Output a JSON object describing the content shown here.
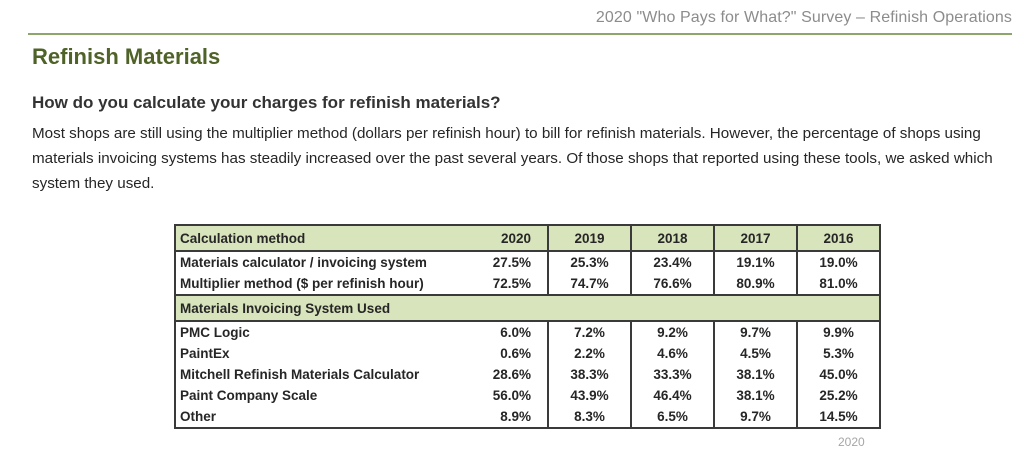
{
  "header": {
    "running_title": "2020 \"Who Pays for What?\" Survey – Refinish Operations",
    "section_title": "Refinish Materials",
    "question": "How do you calculate your charges for refinish materials?",
    "body": "Most shops are still using the multiplier method (dollars per refinish hour) to bill for refinish materials. However, the percentage of shops using materials invoicing systems has steadily increased over the past several years.  Of those shops that reported using these tools, we asked which system they used."
  },
  "table": {
    "header_label": "Calculation method",
    "years": [
      "2020",
      "2019",
      "2018",
      "2017",
      "2016"
    ],
    "calc_rows": [
      {
        "label": "Materials calculator / invoicing system",
        "values": [
          "27.5%",
          "25.3%",
          "23.4%",
          "19.1%",
          "19.0%"
        ]
      },
      {
        "label": "Multiplier method ($ per refinish hour)",
        "values": [
          "72.5%",
          "74.7%",
          "76.6%",
          "80.9%",
          "81.0%"
        ]
      }
    ],
    "subheader_label": "Materials Invoicing System Used",
    "system_rows": [
      {
        "label": "PMC Logic",
        "values": [
          "6.0%",
          "7.2%",
          "9.2%",
          "9.7%",
          "9.9%"
        ]
      },
      {
        "label": "PaintEx",
        "values": [
          "0.6%",
          "2.2%",
          "4.6%",
          "4.5%",
          "5.3%"
        ]
      },
      {
        "label": "Mitchell Refinish Materials Calculator",
        "values": [
          "28.6%",
          "38.3%",
          "33.3%",
          "38.1%",
          "45.0%"
        ]
      },
      {
        "label": "Paint Company Scale",
        "values": [
          "56.0%",
          "43.9%",
          "46.4%",
          "38.1%",
          "25.2%"
        ]
      },
      {
        "label": "Other",
        "values": [
          "8.9%",
          "8.3%",
          "6.5%",
          "9.7%",
          "14.5%"
        ]
      }
    ],
    "footnote": "2020"
  },
  "colors": {
    "title_green": "#4f6228",
    "rule_green": "#8fa66a",
    "header_fill": "#d8e4bc"
  }
}
